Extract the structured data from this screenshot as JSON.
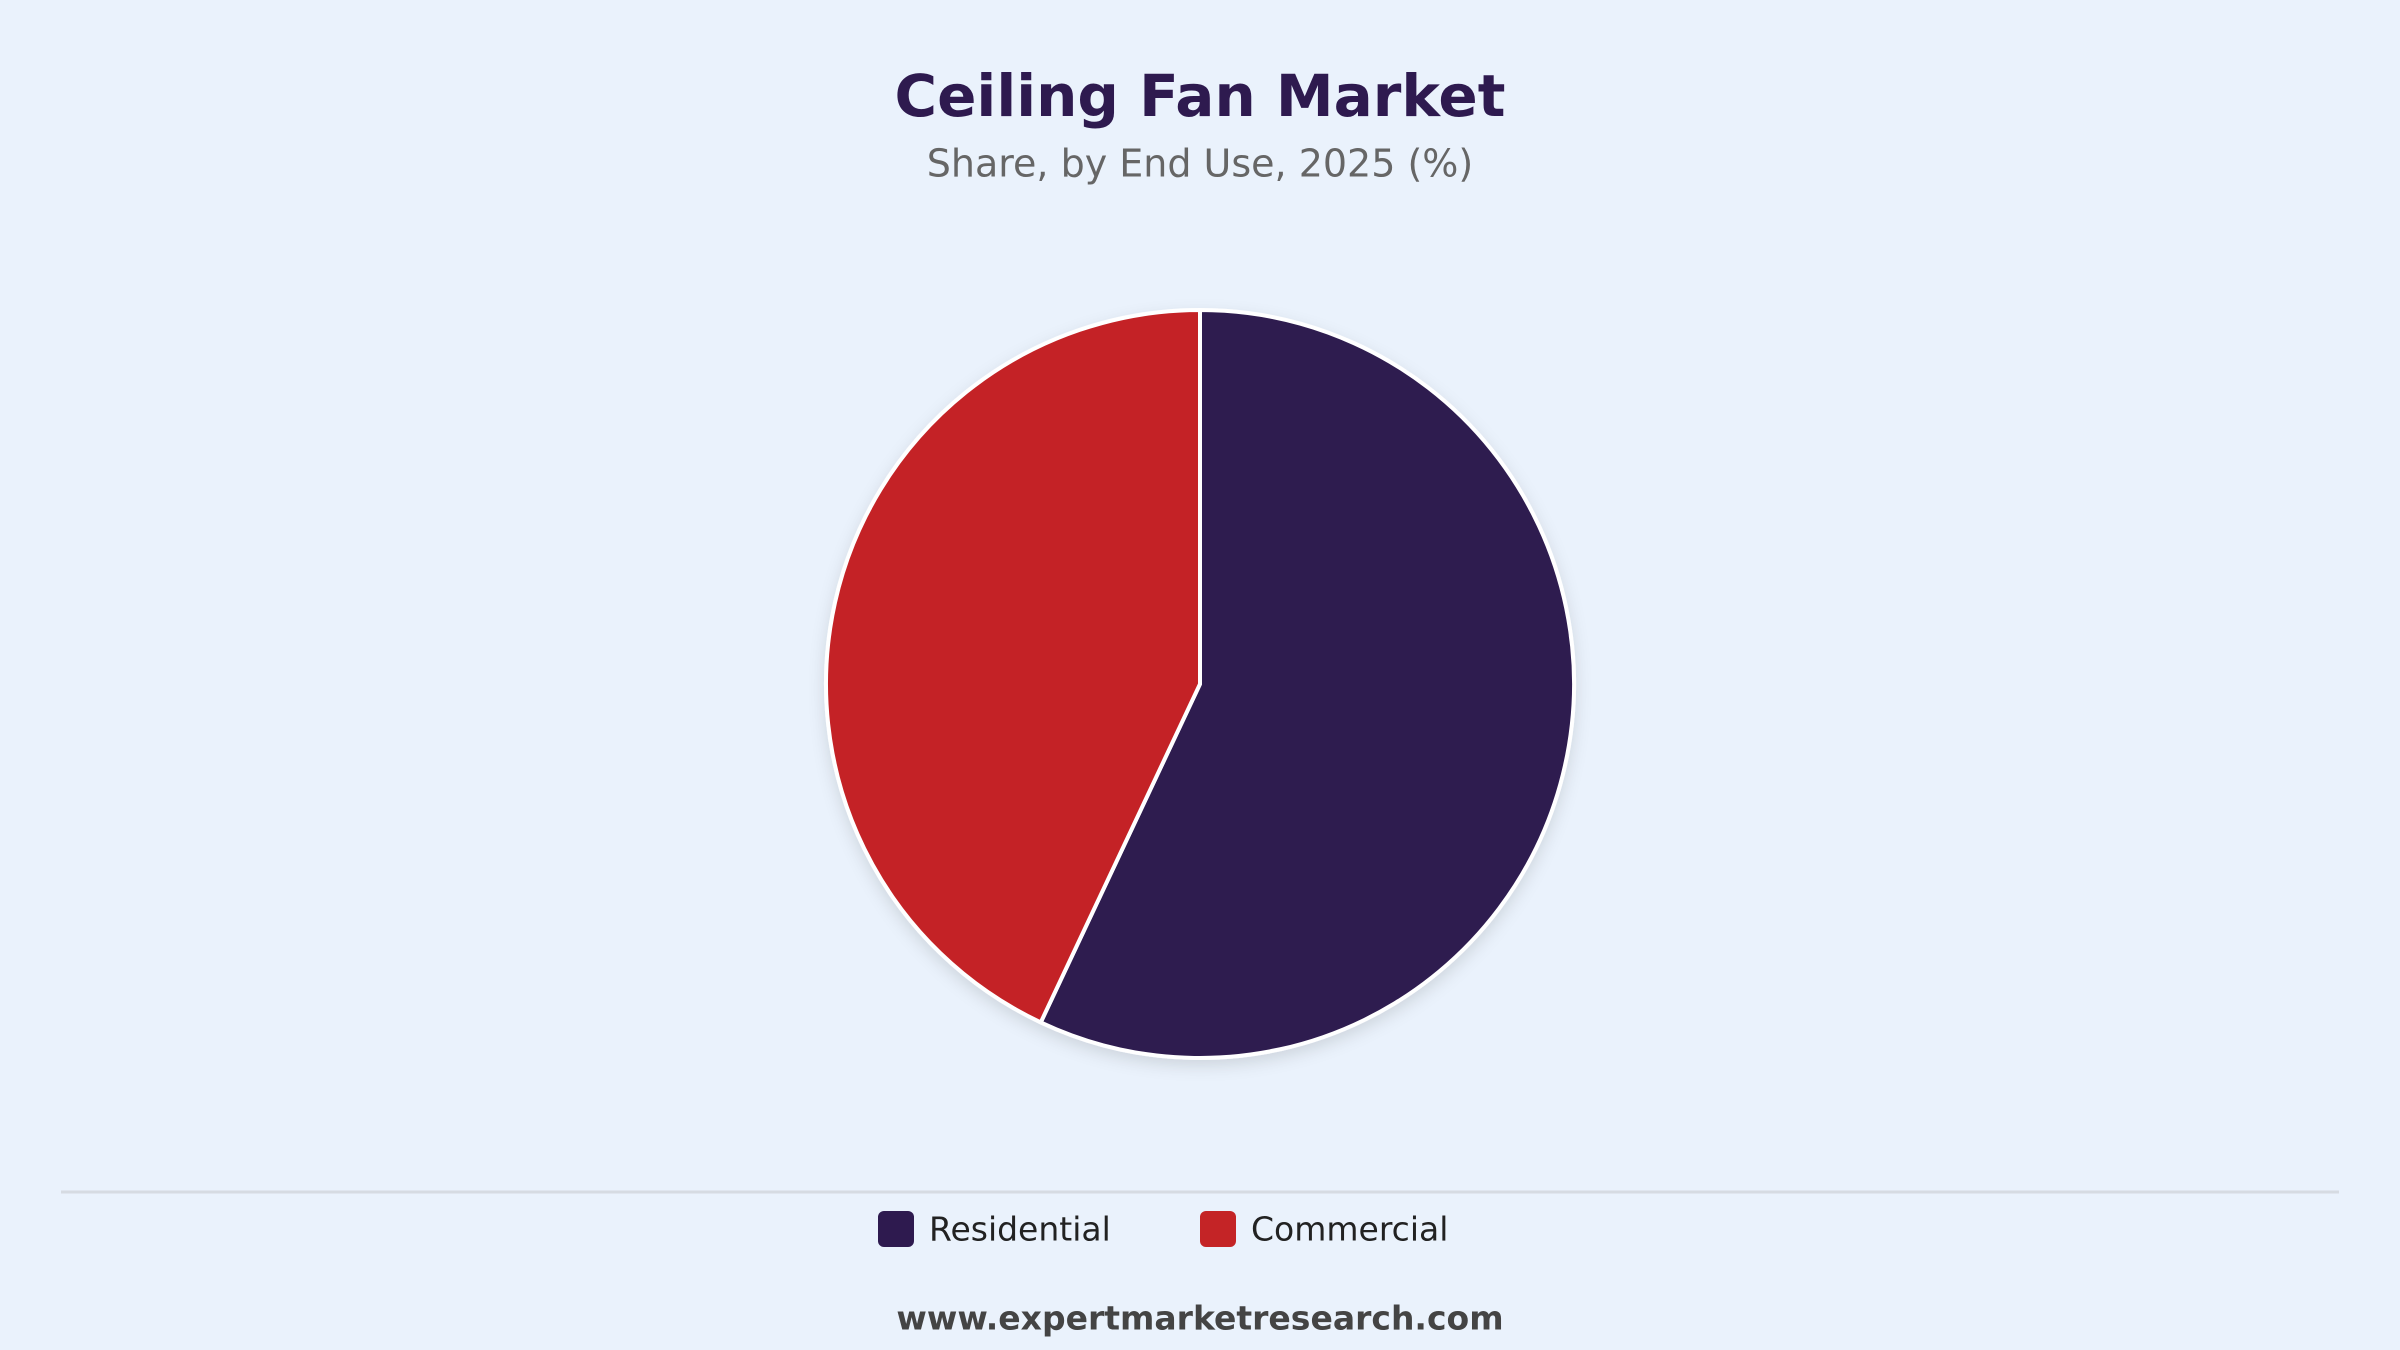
{
  "chart_data": {
    "type": "pie",
    "title": "Ceiling Fan Market",
    "subtitle": "Share, by End Use, 2025 (%)",
    "categories": [
      "Residential",
      "Commercial"
    ],
    "values": [
      57,
      43
    ],
    "colors": [
      "#2e1a4f",
      "#c42426"
    ],
    "legend": "bottom",
    "source": "www.expertmarketresearch.com"
  }
}
